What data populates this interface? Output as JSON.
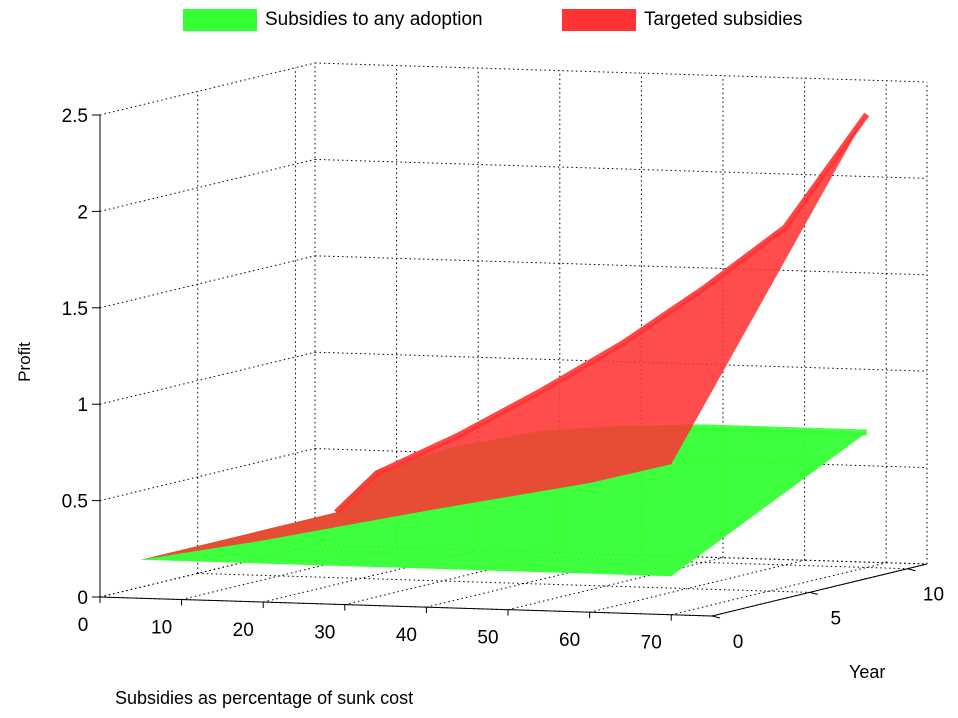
{
  "chart_data": {
    "type": "surface",
    "legend": {
      "placement": "top",
      "entries": [
        {
          "label": "Subsidies to any adoption",
          "color": "#33ff33"
        },
        {
          "label": "Targeted subsidies",
          "color": "#ff3333"
        }
      ]
    },
    "xlabel": "Subsidies as percentage of sunk cost",
    "ylabel": "Year",
    "zlabel": "Profit",
    "xlim": [
      0,
      75
    ],
    "ylim": [
      0,
      11
    ],
    "zlim": [
      0,
      2.5
    ],
    "xticks": [
      "0",
      "10",
      "20",
      "30",
      "40",
      "50",
      "60",
      "70"
    ],
    "yticks": [
      "0",
      "5",
      "10"
    ],
    "zticks": [
      "0",
      "0.5",
      "1",
      "1.5",
      "2",
      "2.5"
    ],
    "grid": true,
    "series": [
      {
        "name": "Subsidies to any adoption",
        "color": "#33ff33",
        "edge_year0": {
          "x": [
            5,
            70
          ],
          "z": [
            0.2,
            0.2
          ]
        },
        "edge_year10": {
          "x": [
            5,
            10,
            20,
            30,
            40,
            50,
            60,
            70
          ],
          "z": [
            0.2,
            0.41,
            0.55,
            0.64,
            0.68,
            0.7,
            0.7,
            0.7
          ]
        }
      },
      {
        "name": "Targeted subsidies",
        "color": "#ff3333",
        "edge_year0": {
          "x": [
            5,
            20,
            40,
            60,
            70
          ],
          "z": [
            0.2,
            0.32,
            0.5,
            0.67,
            0.78
          ]
        },
        "edge_year10": {
          "x": [
            5,
            10,
            20,
            30,
            40,
            50,
            60,
            70
          ],
          "z": [
            0.2,
            0.41,
            0.62,
            0.86,
            1.12,
            1.42,
            1.75,
            2.35
          ]
        }
      }
    ]
  }
}
